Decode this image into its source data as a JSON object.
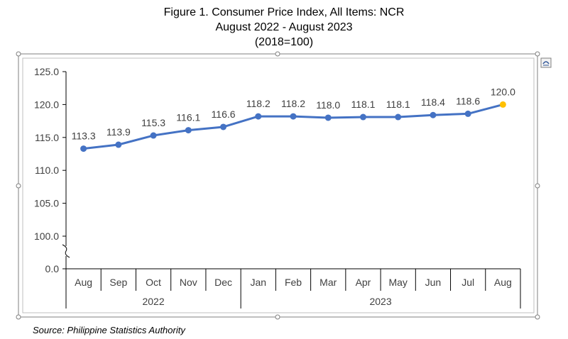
{
  "title_lines": [
    "Figure 1. Consumer Price Index, All Items: NCR",
    "August 2022 - August 2023",
    "(2018=100)"
  ],
  "source": "Source: Philippine Statistics Authority",
  "colors": {
    "line": "#4472C4",
    "highlight": "#FFC000"
  },
  "chart_data": {
    "type": "line",
    "categories": [
      "Aug",
      "Sep",
      "Oct",
      "Nov",
      "Dec",
      "Jan",
      "Feb",
      "Mar",
      "Apr",
      "May",
      "Jun",
      "Jul",
      "Aug"
    ],
    "groups": [
      {
        "label": "2022",
        "start": 0,
        "end": 4
      },
      {
        "label": "2023",
        "start": 5,
        "end": 12
      }
    ],
    "series": [
      {
        "values": [
          113.3,
          113.9,
          115.3,
          116.1,
          116.6,
          118.2,
          118.2,
          118.0,
          118.1,
          118.1,
          118.4,
          118.6,
          120.0
        ]
      }
    ],
    "data_labels": [
      "113.3",
      "113.9",
      "115.3",
      "116.1",
      "116.6",
      "118.2",
      "118.2",
      "118.0",
      "118.1",
      "118.1",
      "118.4",
      "118.6",
      "120.0"
    ],
    "y_ticks": [
      "125.0",
      "120.0",
      "115.0",
      "110.0",
      "105.0",
      "100.0",
      "0.0"
    ],
    "ylim": [
      100,
      125
    ],
    "axis_break": true,
    "highlight_last_point": true,
    "grid": false,
    "legend": "none"
  }
}
